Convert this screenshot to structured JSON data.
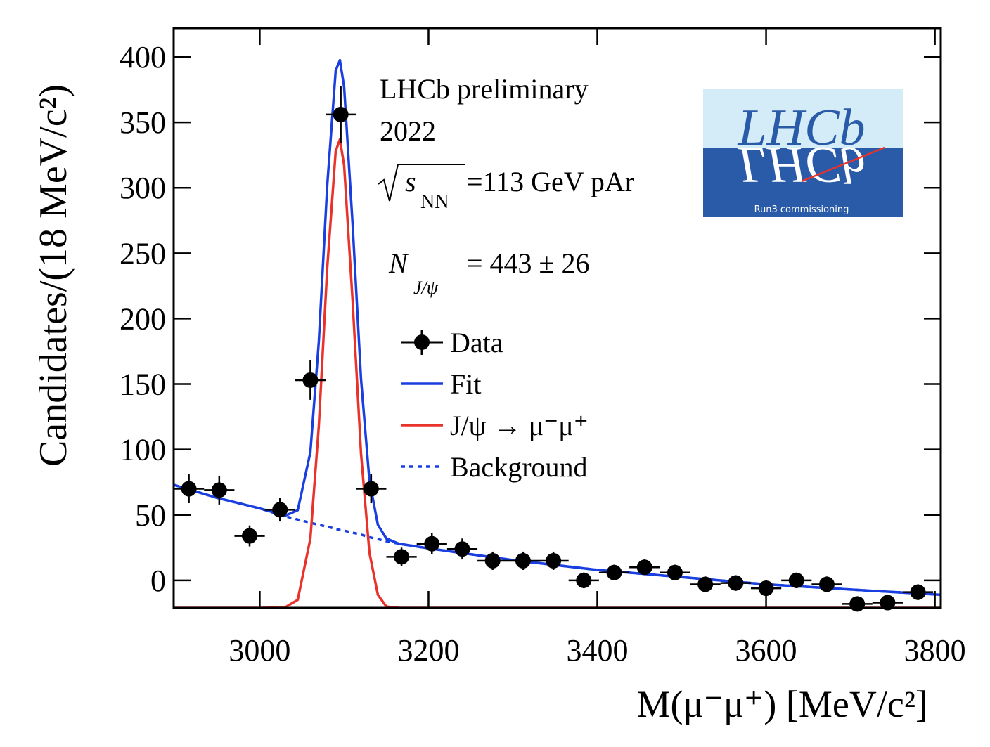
{
  "chart_data": {
    "type": "line",
    "x_label": "M(μ⁻μ⁺) [MeV/c²]",
    "y_label": "Candidates/(18 MeV/c²)",
    "xlim": [
      2898,
      3807
    ],
    "ylim": [
      -21,
      422
    ],
    "xticks": [
      3000,
      3200,
      3400,
      3600,
      3800
    ],
    "yticks": [
      0,
      50,
      100,
      150,
      200,
      250,
      300,
      350,
      400
    ],
    "annotations": {
      "experiment": "LHCb preliminary",
      "year": "2022",
      "energy_symbol": "s",
      "energy_subscript": "NN",
      "energy_text": "=113 GeV pAr",
      "yield_symbol": "N",
      "yield_subscript": "J/ψ",
      "yield_text": "= 443 ± 26"
    },
    "logo": {
      "name": "LHCb",
      "caption": "Run3 commissioning"
    },
    "series": [
      {
        "name": "Data",
        "type": "errorbar",
        "color": "#000000",
        "x": [
          2916,
          2952,
          2988,
          3024,
          3060,
          3096,
          3132,
          3168,
          3204,
          3240,
          3276,
          3312,
          3348,
          3384,
          3420,
          3456,
          3492,
          3528,
          3564,
          3600,
          3636,
          3672,
          3708,
          3744,
          3780
        ],
        "values": [
          70,
          69,
          34,
          54,
          153,
          356,
          70,
          18,
          28,
          24,
          15,
          15,
          15,
          0,
          6,
          10,
          6,
          -3,
          -2,
          -6,
          0,
          -3,
          -18,
          -17,
          -9
        ],
        "yerr": [
          11,
          11,
          8,
          9,
          15,
          22,
          11,
          7,
          8,
          8,
          7,
          7,
          7,
          6,
          6,
          6,
          6,
          6,
          6,
          6,
          6,
          6,
          5,
          5,
          6
        ],
        "xerr": 18
      },
      {
        "name": "Background",
        "type": "line",
        "color": "#1a3fe0",
        "dash": "dotted",
        "x": [
          2898,
          2950,
          3000,
          3030,
          3045,
          3060,
          3070,
          3080,
          3090,
          3095,
          3100,
          3110,
          3120,
          3130,
          3140,
          3150,
          3165,
          3200,
          3300,
          3400,
          3500,
          3600,
          3700,
          3807
        ],
        "values": [
          73,
          63,
          55,
          49,
          46.5,
          44,
          42.5,
          41,
          39.5,
          38.5,
          38,
          36.5,
          35,
          33,
          31.5,
          30,
          28,
          24.5,
          15.5,
          8,
          2.5,
          -3,
          -7,
          -11
        ]
      },
      {
        "name": "J/ψ → μ⁻μ⁺",
        "type": "line",
        "color": "#e8322a",
        "x": [
          2898,
          2950,
          3000,
          3030,
          3045,
          3060,
          3070,
          3080,
          3090,
          3095,
          3100,
          3110,
          3120,
          3130,
          3140,
          3150,
          3165,
          3200,
          3300,
          3400,
          3500,
          3600,
          3700,
          3807
        ],
        "values": [
          -21,
          -21,
          -21,
          -20.6,
          -14.9,
          32,
          118,
          239,
          328,
          337,
          317,
          214,
          97,
          21,
          -11,
          -20,
          -21,
          -21,
          -21,
          -21,
          -21,
          -21,
          -21,
          -21
        ]
      },
      {
        "name": "Fit",
        "type": "line",
        "color": "#1a3fe0",
        "x": [
          2898,
          2950,
          3000,
          3030,
          3045,
          3060,
          3070,
          3080,
          3090,
          3095,
          3100,
          3110,
          3120,
          3130,
          3140,
          3150,
          3165,
          3200,
          3300,
          3400,
          3500,
          3600,
          3700,
          3807
        ],
        "values": [
          73,
          63,
          55,
          49.4,
          53.6,
          98,
          182.5,
          302,
          389.5,
          397.5,
          377,
          272.5,
          154,
          76,
          42.5,
          32,
          28,
          24.5,
          15.5,
          8,
          2.5,
          -3,
          -7,
          -11
        ]
      }
    ],
    "legend_order": [
      0,
      3,
      2,
      1
    ]
  }
}
